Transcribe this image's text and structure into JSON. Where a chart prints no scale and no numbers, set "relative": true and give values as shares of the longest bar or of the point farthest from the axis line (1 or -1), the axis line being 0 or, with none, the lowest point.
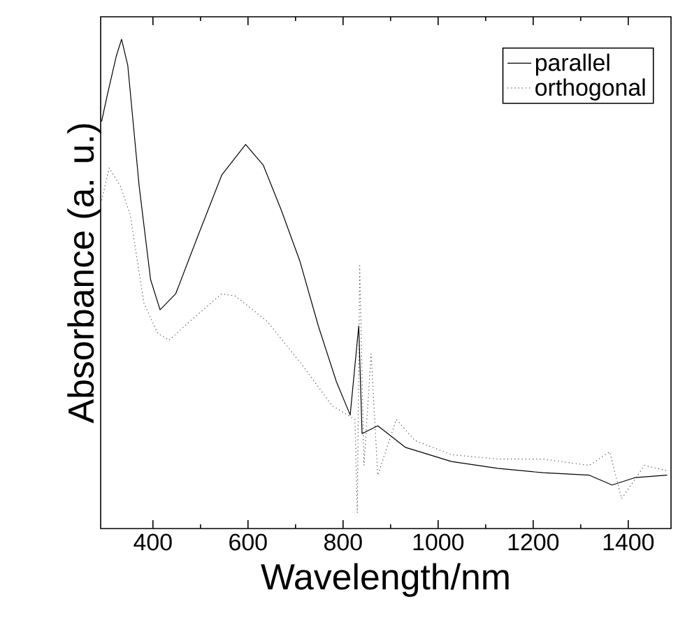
{
  "chart_data": {
    "type": "line",
    "xlabel": "Wavelength/nm",
    "ylabel": "Absorbance (a. u.)",
    "relative": true,
    "xlim": [
      290,
      1490
    ],
    "xticks": [
      400,
      600,
      800,
      1000,
      1200,
      1400
    ],
    "legend": "top right",
    "grid": false,
    "series": [
      {
        "name": "parallel",
        "color": "#000000",
        "line_style": "solid",
        "x": [
          292,
          304,
          323,
          334,
          347,
          371,
          395,
          415,
          448,
          497,
          545,
          595,
          632,
          670,
          709,
          748,
          786,
          815,
          833,
          840,
          873,
          931,
          1028,
          1125,
          1221,
          1318,
          1366,
          1414,
          1482
        ],
        "values": [
          0.832,
          0.886,
          0.966,
          1.0,
          0.947,
          0.7,
          0.509,
          0.447,
          0.48,
          0.604,
          0.723,
          0.785,
          0.743,
          0.651,
          0.547,
          0.414,
          0.3,
          0.232,
          0.414,
          0.194,
          0.21,
          0.166,
          0.137,
          0.123,
          0.114,
          0.109,
          0.089,
          0.104,
          0.109
        ]
      },
      {
        "name": "orthogonal",
        "color": "#444444",
        "line_style": "dotted",
        "x": [
          292,
          308,
          332,
          352,
          381,
          410,
          434,
          477,
          545,
          574,
          641,
          719,
          777,
          825,
          830,
          835,
          844,
          859,
          873,
          912,
          951,
          1028,
          1125,
          1221,
          1318,
          1361,
          1386,
          1434,
          1482
        ],
        "values": [
          0.671,
          0.737,
          0.699,
          0.642,
          0.461,
          0.399,
          0.385,
          0.423,
          0.48,
          0.475,
          0.423,
          0.328,
          0.251,
          0.223,
          0.032,
          0.537,
          0.129,
          0.357,
          0.109,
          0.223,
          0.18,
          0.151,
          0.142,
          0.142,
          0.129,
          0.157,
          0.061,
          0.129,
          0.118
        ]
      }
    ]
  }
}
